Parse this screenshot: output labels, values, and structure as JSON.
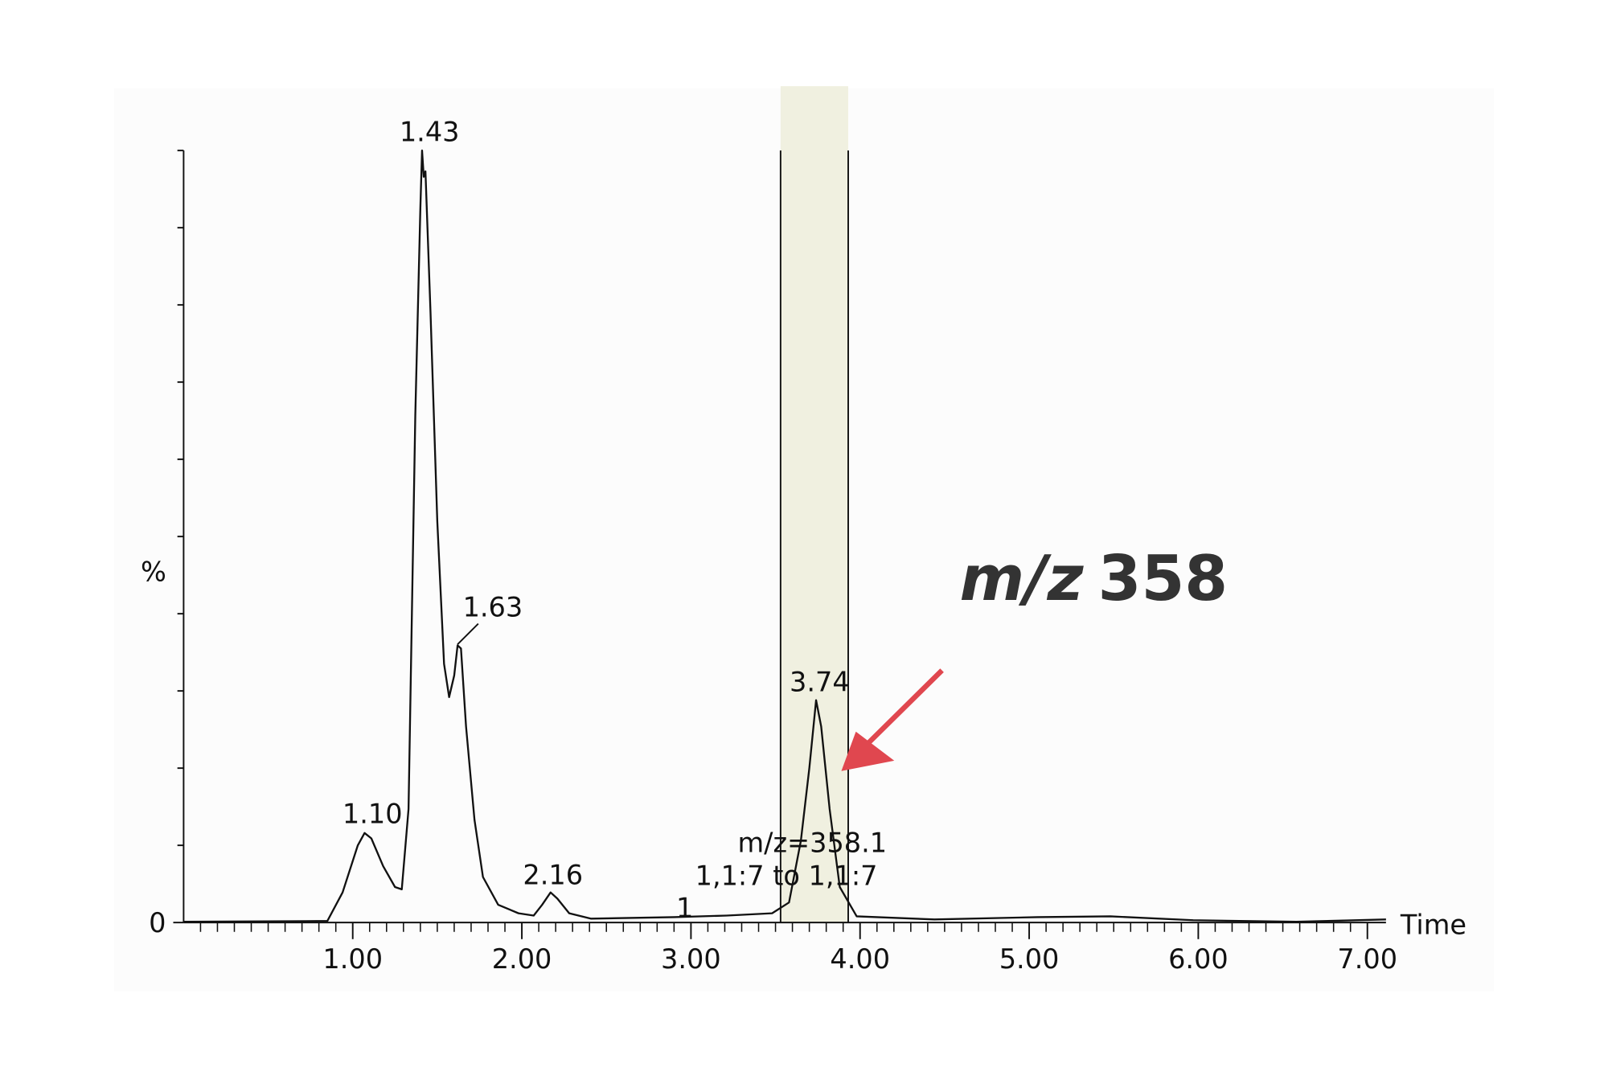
{
  "chart_data": {
    "type": "line",
    "xlabel": "Time",
    "ylabel": "%",
    "x": [
      0,
      0.85,
      0.94,
      1.03,
      1.07,
      1.11,
      1.18,
      1.25,
      1.29,
      1.33,
      1.37,
      1.4,
      1.41,
      1.42,
      1.43,
      1.46,
      1.5,
      1.54,
      1.57,
      1.6,
      1.62,
      1.64,
      1.67,
      1.72,
      1.77,
      1.86,
      1.98,
      2.07,
      2.12,
      2.17,
      2.21,
      2.28,
      2.41,
      2.9,
      3.21,
      3.48,
      3.58,
      3.65,
      3.7,
      3.74,
      3.77,
      3.82,
      3.88,
      3.98,
      4.44,
      5.05,
      5.48,
      5.97,
      6.58,
      7.11
    ],
    "values": [
      0.1,
      0.2,
      3.9,
      10,
      11.6,
      10.9,
      7.3,
      4.6,
      4.3,
      14.7,
      65.7,
      92.6,
      100,
      96.6,
      97.3,
      79,
      52,
      33.5,
      29.2,
      32,
      35.9,
      35.5,
      25.4,
      13.3,
      5.9,
      2.3,
      1.2,
      0.9,
      2.3,
      3.9,
      3.1,
      1.2,
      0.5,
      0.7,
      0.9,
      1.2,
      2.6,
      10.6,
      20,
      28.8,
      25.4,
      14.7,
      4.6,
      0.8,
      0.4,
      0.7,
      0.8,
      0.3,
      0.1,
      0.4
    ],
    "color": "#111111",
    "xlim": [
      0,
      7.11
    ],
    "ylim": [
      0,
      100
    ],
    "xticks": [
      {
        "value": 1,
        "label": "1.00"
      },
      {
        "value": 2,
        "label": "2.00"
      },
      {
        "value": 3,
        "label": "3.00"
      },
      {
        "value": 4,
        "label": "4.00"
      },
      {
        "value": 5,
        "label": "5.00"
      },
      {
        "value": 6,
        "label": "6.00"
      },
      {
        "value": 7,
        "label": "7.00"
      }
    ],
    "xminorticks": [
      0.1,
      0.2,
      0.3,
      0.4,
      0.5,
      0.6,
      0.7,
      0.8,
      0.9,
      1.1,
      1.2,
      1.3,
      1.4,
      1.5,
      1.6,
      1.7,
      1.8,
      1.9,
      2.1,
      2.2,
      2.3,
      2.4,
      2.5,
      2.6,
      2.7,
      2.8,
      2.9,
      3.1,
      3.2,
      3.3,
      3.4,
      3.5,
      3.6,
      3.7,
      3.8,
      3.9,
      4.1,
      4.2,
      4.3,
      4.4,
      4.5,
      4.6,
      4.7,
      4.8,
      4.9,
      5.1,
      5.2,
      5.3,
      5.4,
      5.5,
      5.6,
      5.7,
      5.8,
      5.9,
      6.1,
      6.2,
      6.3,
      6.4,
      6.5,
      6.6,
      6.7,
      6.8,
      6.9
    ],
    "yticks": [
      0
    ],
    "yminorticks": [
      10,
      20,
      30,
      40,
      50,
      60,
      70,
      80,
      90,
      100
    ],
    "highlight": {
      "xrange": [
        3.53,
        3.93
      ],
      "color": "#f0f0e0"
    },
    "peak_labels": [
      "1.10",
      "1.43",
      "1.63",
      "2.16",
      "3.74"
    ],
    "annotations": [
      "m/z=358.1",
      "1,1:7 to 1,1:7",
      "1"
    ],
    "callout": {
      "italic": "m/z",
      "bold": "358"
    }
  }
}
